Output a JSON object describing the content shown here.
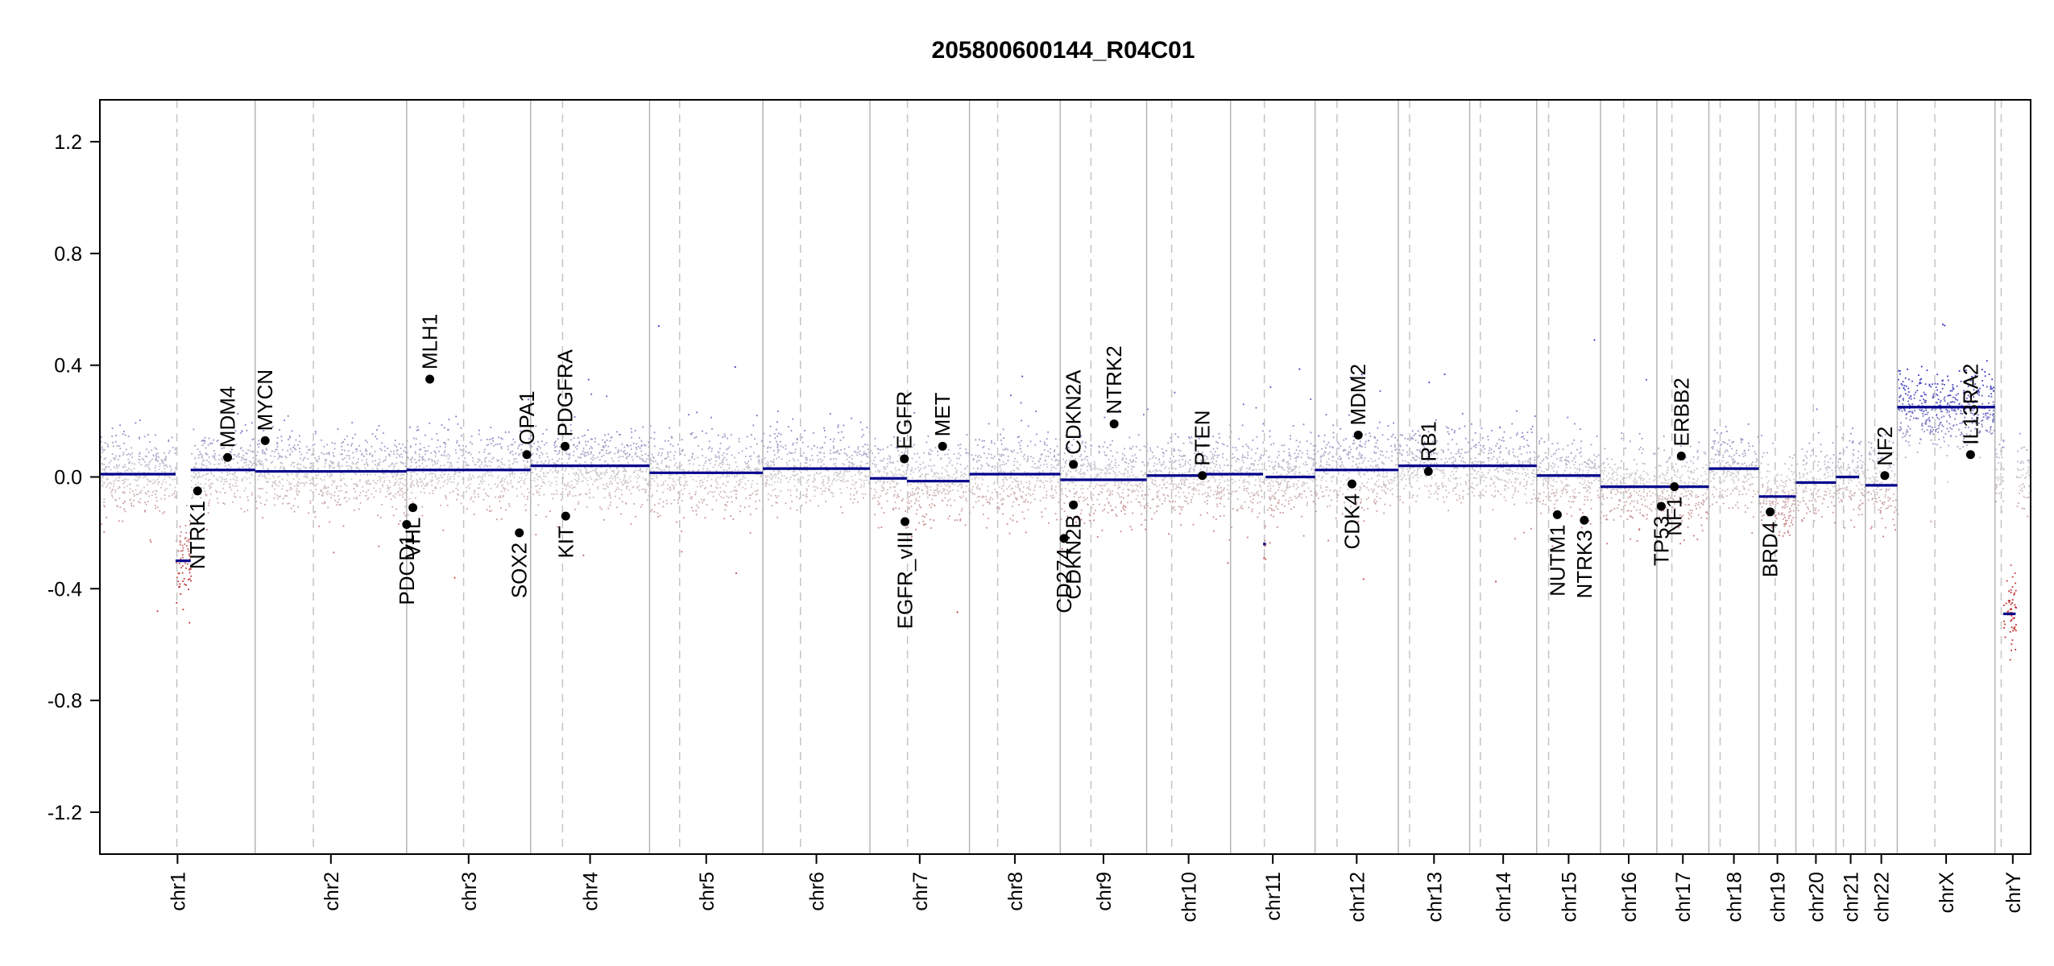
{
  "chart_data": {
    "type": "scatter",
    "title": "205800600144_R04C01",
    "xlabel": "",
    "ylabel": "",
    "ylim": [
      -1.35,
      1.35
    ],
    "yticks": [
      "1.2",
      "0.8",
      "0.4",
      "0.0",
      "-0.4",
      "-0.8",
      "-1.2"
    ],
    "yvalues": [
      1.2,
      0.8,
      0.4,
      0.0,
      -0.4,
      -0.8,
      -1.2
    ],
    "grid": false,
    "colors": {
      "segment": "#00008b",
      "gain_dot": "#2222bb",
      "loss_dot": "#bb2222",
      "neutral_dot": "#c9b6b6",
      "gene_dot": "#000000",
      "separator": "#b5b5b5",
      "centromere": "#c4c4c4"
    },
    "chromosomes": [
      {
        "name": "chr1",
        "start": 0,
        "end": 248,
        "cen": 123
      },
      {
        "name": "chr2",
        "start": 248,
        "end": 490,
        "cen": 93
      },
      {
        "name": "chr3",
        "start": 490,
        "end": 688,
        "cen": 91
      },
      {
        "name": "chr4",
        "start": 688,
        "end": 878,
        "cen": 51
      },
      {
        "name": "chr5",
        "start": 878,
        "end": 1059,
        "cen": 48
      },
      {
        "name": "chr6",
        "start": 1059,
        "end": 1230,
        "cen": 60
      },
      {
        "name": "chr7",
        "start": 1230,
        "end": 1389,
        "cen": 60
      },
      {
        "name": "chr8",
        "start": 1389,
        "end": 1534,
        "cen": 45
      },
      {
        "name": "chr9",
        "start": 1534,
        "end": 1672,
        "cen": 49
      },
      {
        "name": "chr10",
        "start": 1672,
        "end": 1806,
        "cen": 40
      },
      {
        "name": "chr11",
        "start": 1806,
        "end": 1941,
        "cen": 54
      },
      {
        "name": "chr12",
        "start": 1941,
        "end": 2074,
        "cen": 35
      },
      {
        "name": "chr13",
        "start": 2074,
        "end": 2188,
        "cen": 18
      },
      {
        "name": "chr14",
        "start": 2188,
        "end": 2295,
        "cen": 17
      },
      {
        "name": "chr15",
        "start": 2295,
        "end": 2397,
        "cen": 19
      },
      {
        "name": "chr16",
        "start": 2397,
        "end": 2487,
        "cen": 37
      },
      {
        "name": "chr17",
        "start": 2487,
        "end": 2570,
        "cen": 24
      },
      {
        "name": "chr18",
        "start": 2570,
        "end": 2650,
        "cen": 18
      },
      {
        "name": "chr19",
        "start": 2650,
        "end": 2709,
        "cen": 26
      },
      {
        "name": "chr20",
        "start": 2709,
        "end": 2773,
        "cen": 28
      },
      {
        "name": "chr21",
        "start": 2773,
        "end": 2820,
        "cen": 12
      },
      {
        "name": "chr22",
        "start": 2820,
        "end": 2871,
        "cen": 15
      },
      {
        "name": "chrX",
        "start": 2871,
        "end": 3027,
        "cen": 60
      },
      {
        "name": "chrY",
        "start": 3027,
        "end": 3084,
        "cen": 10
      }
    ],
    "segments": [
      {
        "x0": 0,
        "x1": 121,
        "y": 0.01
      },
      {
        "x0": 121,
        "x1": 145,
        "y": -0.3
      },
      {
        "x0": 145,
        "x1": 248,
        "y": 0.025
      },
      {
        "x0": 248,
        "x1": 490,
        "y": 0.02
      },
      {
        "x0": 490,
        "x1": 688,
        "y": 0.025
      },
      {
        "x0": 688,
        "x1": 878,
        "y": 0.04
      },
      {
        "x0": 878,
        "x1": 1059,
        "y": 0.015
      },
      {
        "x0": 1059,
        "x1": 1230,
        "y": 0.03
      },
      {
        "x0": 1230,
        "x1": 1289,
        "y": -0.005
      },
      {
        "x0": 1289,
        "x1": 1389,
        "y": -0.015
      },
      {
        "x0": 1389,
        "x1": 1534,
        "y": 0.01
      },
      {
        "x0": 1534,
        "x1": 1672,
        "y": -0.01
      },
      {
        "x0": 1672,
        "x1": 1759,
        "y": 0.005
      },
      {
        "x0": 1759,
        "x1": 1806,
        "y": 0.01
      },
      {
        "x0": 1806,
        "x1": 1858,
        "y": 0.01
      },
      {
        "x0": 1858,
        "x1": 1862,
        "y": -0.24
      },
      {
        "x0": 1862,
        "x1": 1941,
        "y": 0.0
      },
      {
        "x0": 1941,
        "x1": 2074,
        "y": 0.025
      },
      {
        "x0": 2074,
        "x1": 2188,
        "y": 0.04
      },
      {
        "x0": 2188,
        "x1": 2295,
        "y": 0.04
      },
      {
        "x0": 2295,
        "x1": 2397,
        "y": 0.005
      },
      {
        "x0": 2397,
        "x1": 2570,
        "y": -0.035
      },
      {
        "x0": 2570,
        "x1": 2650,
        "y": 0.03
      },
      {
        "x0": 2650,
        "x1": 2709,
        "y": -0.07
      },
      {
        "x0": 2709,
        "x1": 2773,
        "y": -0.02
      },
      {
        "x0": 2773,
        "x1": 2810,
        "y": 0.0
      },
      {
        "x0": 2820,
        "x1": 2871,
        "y": -0.03
      },
      {
        "x0": 2871,
        "x1": 3027,
        "y": 0.25
      },
      {
        "x0": 3040,
        "x1": 3060,
        "y": -0.49
      }
    ],
    "genes": [
      {
        "name": "NTRK1",
        "x": 156,
        "y": -0.05,
        "label_above": false
      },
      {
        "name": "MDM4",
        "x": 204,
        "y": 0.07,
        "label_above": true
      },
      {
        "name": "MYCN",
        "x": 264,
        "y": 0.13,
        "label_above": true
      },
      {
        "name": "PDCD1",
        "x": 490,
        "y": -0.17,
        "label_above": false
      },
      {
        "name": "VHL",
        "x": 500,
        "y": -0.11,
        "label_above": false
      },
      {
        "name": "MLH1",
        "x": 527,
        "y": 0.35,
        "label_above": true
      },
      {
        "name": "SOX2",
        "x": 670,
        "y": -0.2,
        "label_above": false
      },
      {
        "name": "OPA1",
        "x": 682,
        "y": 0.08,
        "label_above": true
      },
      {
        "name": "KIT",
        "x": 744,
        "y": -0.14,
        "label_above": false
      },
      {
        "name": "PDGFRA",
        "x": 743,
        "y": 0.11,
        "label_above": true
      },
      {
        "name": "EGFR",
        "x": 1285,
        "y": 0.065,
        "label_above": true
      },
      {
        "name": "EGFR_vIII",
        "x": 1286,
        "y": -0.16,
        "label_above": false
      },
      {
        "name": "MET",
        "x": 1346,
        "y": 0.11,
        "label_above": true
      },
      {
        "name": "CD274",
        "x": 1540,
        "y": -0.22,
        "label_above": false
      },
      {
        "name": "CDKN2A",
        "x": 1555,
        "y": 0.045,
        "label_above": true
      },
      {
        "name": "CDKN2B",
        "x": 1555,
        "y": -0.1,
        "label_above": false
      },
      {
        "name": "NTRK2",
        "x": 1620,
        "y": 0.19,
        "label_above": true
      },
      {
        "name": "PTEN",
        "x": 1761,
        "y": 0.005,
        "label_above": true
      },
      {
        "name": "CDK4",
        "x": 2000,
        "y": -0.025,
        "label_above": false
      },
      {
        "name": "MDM2",
        "x": 2010,
        "y": 0.15,
        "label_above": true
      },
      {
        "name": "RB1",
        "x": 2122,
        "y": 0.02,
        "label_above": true
      },
      {
        "name": "NUTM1",
        "x": 2328,
        "y": -0.135,
        "label_above": false
      },
      {
        "name": "NTRK3",
        "x": 2371,
        "y": -0.155,
        "label_above": false
      },
      {
        "name": "TP53",
        "x": 2494,
        "y": -0.105,
        "label_above": false
      },
      {
        "name": "NF1",
        "x": 2515,
        "y": -0.035,
        "label_above": false
      },
      {
        "name": "ERBB2",
        "x": 2526,
        "y": 0.075,
        "label_above": true
      },
      {
        "name": "BRD4",
        "x": 2668,
        "y": -0.125,
        "label_above": false
      },
      {
        "name": "NF2",
        "x": 2851,
        "y": 0.005,
        "label_above": true
      },
      {
        "name": "IL13RA2",
        "x": 2988,
        "y": 0.08,
        "label_above": true
      }
    ]
  }
}
